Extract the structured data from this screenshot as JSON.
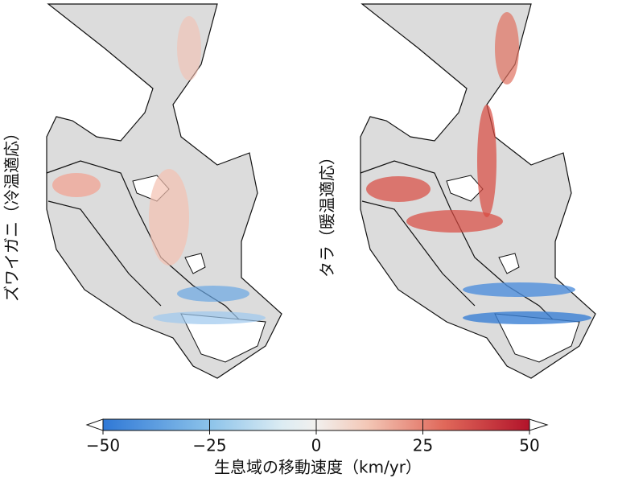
{
  "panels": [
    {
      "label": "ズワイガニ（冷温適応）"
    },
    {
      "label": "タラ（暖温適応）"
    }
  ],
  "colorbar": {
    "lim": [
      -50,
      50
    ],
    "ticks": [
      {
        "value": -50,
        "label": "−50"
      },
      {
        "value": -25,
        "label": "−25"
      },
      0,
      25,
      50
    ],
    "label": "生息域の移動速度（km/yr）"
  }
}
